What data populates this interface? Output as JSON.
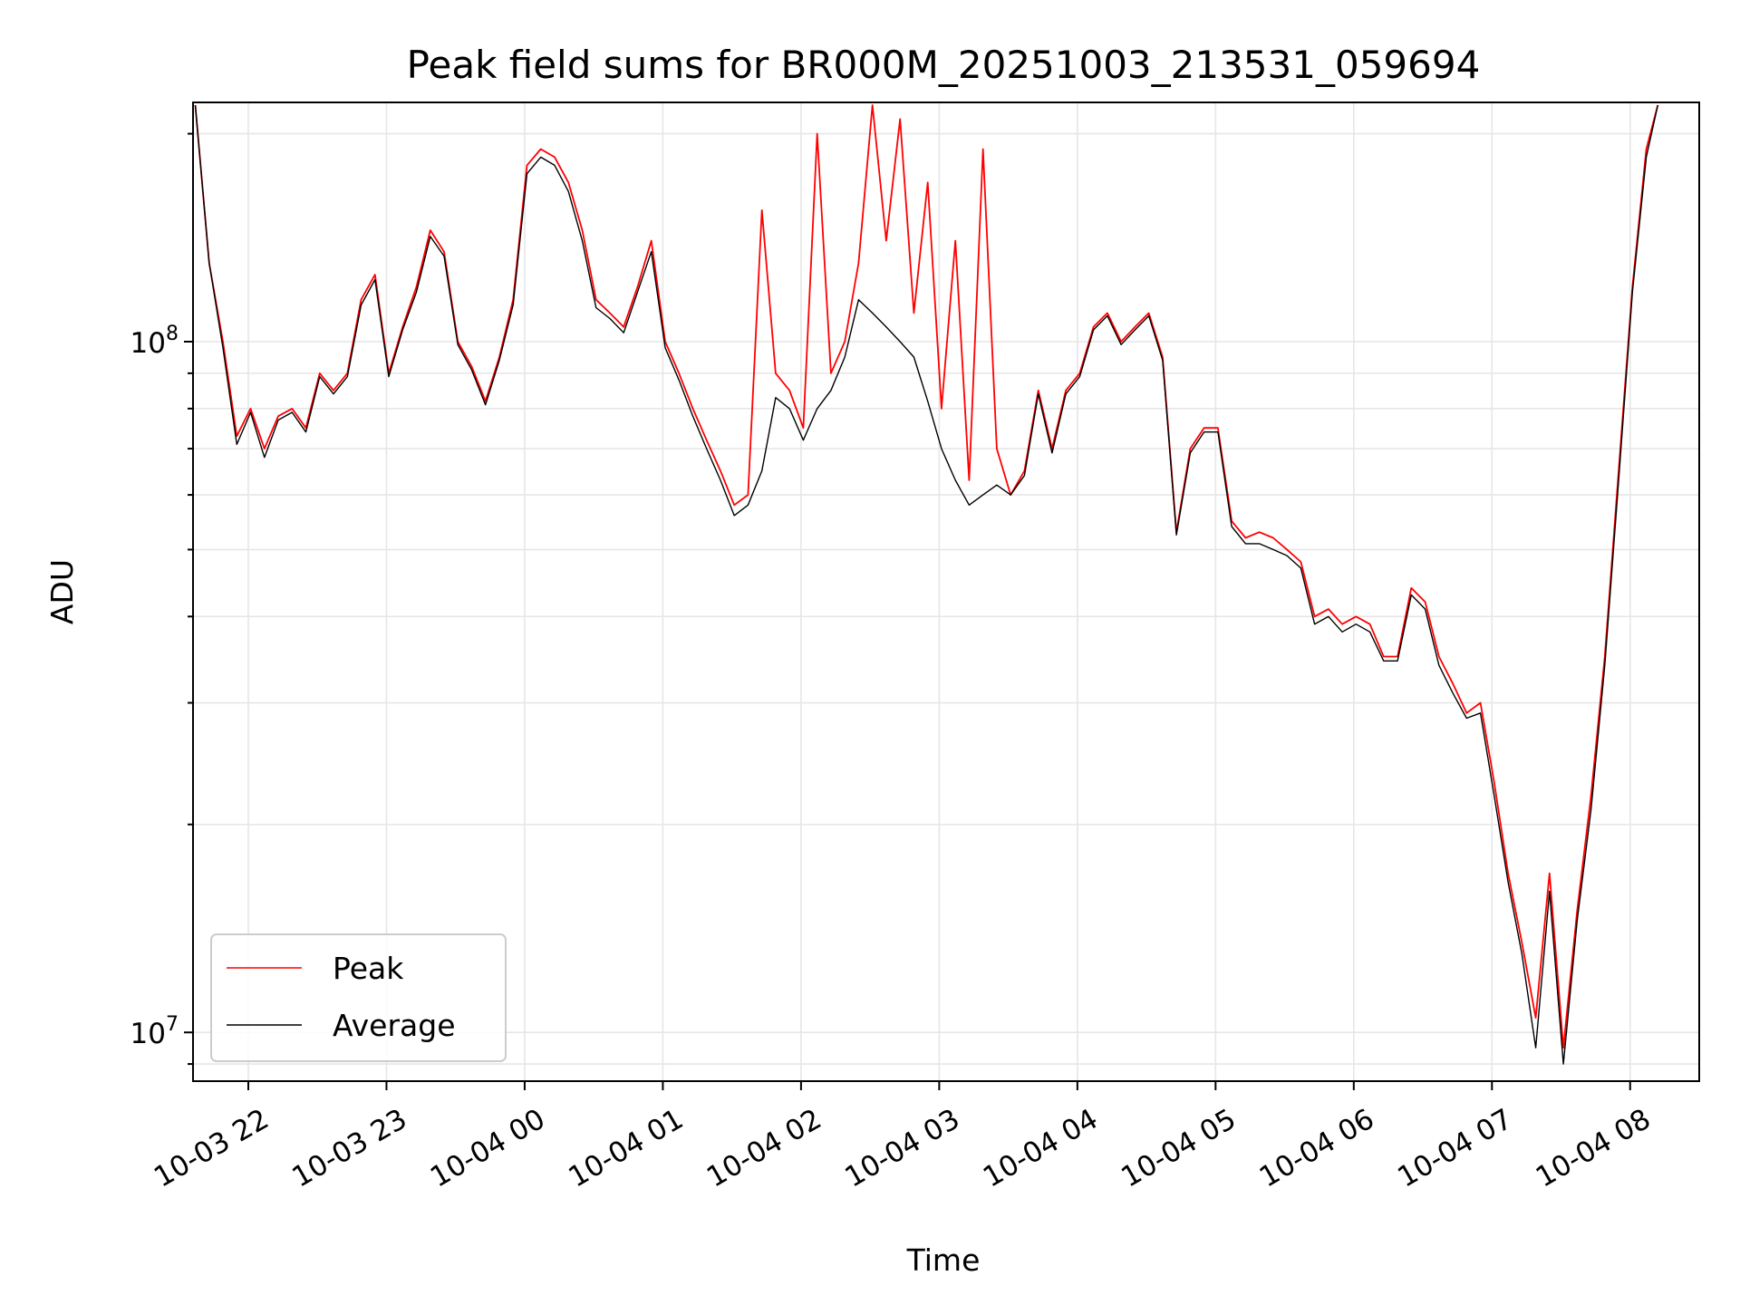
{
  "chart_data": {
    "type": "line",
    "title": "Peak field sums for BR000M_20251003_213531_059694",
    "xlabel": "Time",
    "ylabel": "ADU",
    "y_scale": "log",
    "ylim": [
      8500000,
      222000000
    ],
    "xlim_hours": [
      -2.4,
      8.5
    ],
    "x_tick_labels": [
      "10-03 22",
      "10-03 23",
      "10-04 00",
      "10-04 01",
      "10-04 02",
      "10-04 03",
      "10-04 04",
      "10-04 05",
      "10-04 06",
      "10-04 07",
      "10-04 08"
    ],
    "x_tick_hours": [
      -2,
      -1,
      0,
      1,
      2,
      3,
      4,
      5,
      6,
      7,
      8
    ],
    "y_major_ticks": [
      {
        "value": 10000000,
        "base": "10",
        "exp": "7"
      },
      {
        "value": 100000000,
        "base": "10",
        "exp": "8"
      }
    ],
    "grid": true,
    "legend_position": "lower-left",
    "series": [
      {
        "name": "Peak",
        "color": "#ff0000",
        "points": [
          [
            "10-03 21:37",
            220000000.0
          ],
          [
            "10-03 21:43",
            130000000.0
          ],
          [
            "10-03 21:49",
            100000000.0
          ],
          [
            "10-03 21:55",
            73000000.0
          ],
          [
            "10-03 22:01",
            80000000.0
          ],
          [
            "10-03 22:07",
            70000000.0
          ],
          [
            "10-03 22:13",
            78000000.0
          ],
          [
            "10-03 22:19",
            80000000.0
          ],
          [
            "10-03 22:25",
            75000000.0
          ],
          [
            "10-03 22:31",
            90000000.0
          ],
          [
            "10-03 22:37",
            85000000.0
          ],
          [
            "10-03 22:43",
            90000000.0
          ],
          [
            "10-03 22:49",
            115000000.0
          ],
          [
            "10-03 22:55",
            125000000.0
          ],
          [
            "10-03 23:01",
            90000000.0
          ],
          [
            "10-03 23:07",
            105000000.0
          ],
          [
            "10-03 23:13",
            120000000.0
          ],
          [
            "10-03 23:19",
            145000000.0
          ],
          [
            "10-03 23:25",
            135000000.0
          ],
          [
            "10-03 23:31",
            100000000.0
          ],
          [
            "10-03 23:37",
            92000000.0
          ],
          [
            "10-03 23:43",
            82000000.0
          ],
          [
            "10-03 23:49",
            95000000.0
          ],
          [
            "10-03 23:55",
            115000000.0
          ],
          [
            "10-04 00:01",
            180000000.0
          ],
          [
            "10-04 00:07",
            190000000.0
          ],
          [
            "10-04 00:13",
            185000000.0
          ],
          [
            "10-04 00:19",
            170000000.0
          ],
          [
            "10-04 00:25",
            145000000.0
          ],
          [
            "10-04 00:31",
            115000000.0
          ],
          [
            "10-04 00:37",
            110000000.0
          ],
          [
            "10-04 00:43",
            105000000.0
          ],
          [
            "10-04 00:49",
            120000000.0
          ],
          [
            "10-04 00:55",
            140000000.0
          ],
          [
            "10-04 01:01",
            100000000.0
          ],
          [
            "10-04 01:07",
            90000000.0
          ],
          [
            "10-04 01:13",
            80000000.0
          ],
          [
            "10-04 01:19",
            72000000.0
          ],
          [
            "10-04 01:25",
            65000000.0
          ],
          [
            "10-04 01:31",
            58000000.0
          ],
          [
            "10-04 01:37",
            60000000.0
          ],
          [
            "10-04 01:43",
            155000000.0
          ],
          [
            "10-04 01:49",
            90000000.0
          ],
          [
            "10-04 01:55",
            85000000.0
          ],
          [
            "10-04 02:01",
            75000000.0
          ],
          [
            "10-04 02:07",
            200000000.0
          ],
          [
            "10-04 02:13",
            90000000.0
          ],
          [
            "10-04 02:19",
            100000000.0
          ],
          [
            "10-04 02:25",
            130000000.0
          ],
          [
            "10-04 02:31",
            220000000.0
          ],
          [
            "10-04 02:37",
            140000000.0
          ],
          [
            "10-04 02:43",
            210000000.0
          ],
          [
            "10-04 02:49",
            110000000.0
          ],
          [
            "10-04 02:55",
            170000000.0
          ],
          [
            "10-04 03:01",
            80000000.0
          ],
          [
            "10-04 03:07",
            140000000.0
          ],
          [
            "10-04 03:13",
            63000000.0
          ],
          [
            "10-04 03:19",
            190000000.0
          ],
          [
            "10-04 03:25",
            70000000.0
          ],
          [
            "10-04 03:31",
            60000000.0
          ],
          [
            "10-04 03:37",
            65000000.0
          ],
          [
            "10-04 03:43",
            85000000.0
          ],
          [
            "10-04 03:49",
            70000000.0
          ],
          [
            "10-04 03:55",
            85000000.0
          ],
          [
            "10-04 04:01",
            90000000.0
          ],
          [
            "10-04 04:07",
            105000000.0
          ],
          [
            "10-04 04:13",
            110000000.0
          ],
          [
            "10-04 04:19",
            100000000.0
          ],
          [
            "10-04 04:25",
            105000000.0
          ],
          [
            "10-04 04:31",
            110000000.0
          ],
          [
            "10-04 04:37",
            95000000.0
          ],
          [
            "10-04 04:43",
            53000000.0
          ],
          [
            "10-04 04:49",
            70000000.0
          ],
          [
            "10-04 04:55",
            75000000.0
          ],
          [
            "10-04 05:01",
            75000000.0
          ],
          [
            "10-04 05:07",
            55000000.0
          ],
          [
            "10-04 05:13",
            52000000.0
          ],
          [
            "10-04 05:19",
            53000000.0
          ],
          [
            "10-04 05:25",
            52000000.0
          ],
          [
            "10-04 05:31",
            50000000.0
          ],
          [
            "10-04 05:37",
            48000000.0
          ],
          [
            "10-04 05:43",
            40000000.0
          ],
          [
            "10-04 05:49",
            41000000.0
          ],
          [
            "10-04 05:55",
            39000000.0
          ],
          [
            "10-04 06:01",
            40000000.0
          ],
          [
            "10-04 06:07",
            39000000.0
          ],
          [
            "10-04 06:13",
            35000000.0
          ],
          [
            "10-04 06:19",
            35000000.0
          ],
          [
            "10-04 06:25",
            44000000.0
          ],
          [
            "10-04 06:31",
            42000000.0
          ],
          [
            "10-04 06:37",
            35000000.0
          ],
          [
            "10-04 06:43",
            32000000.0
          ],
          [
            "10-04 06:49",
            29000000.0
          ],
          [
            "10-04 06:55",
            30000000.0
          ],
          [
            "10-04 07:01",
            23000000.0
          ],
          [
            "10-04 07:07",
            17000000.0
          ],
          [
            "10-04 07:13",
            13500000.0
          ],
          [
            "10-04 07:19",
            10500000.0
          ],
          [
            "10-04 07:25",
            17000000.0
          ],
          [
            "10-04 07:31",
            9500000.0
          ],
          [
            "10-04 07:37",
            15000000.0
          ],
          [
            "10-04 07:43",
            22000000.0
          ],
          [
            "10-04 07:49",
            35000000.0
          ],
          [
            "10-04 07:55",
            65000000.0
          ],
          [
            "10-04 08:01",
            120000000.0
          ],
          [
            "10-04 08:07",
            190000000.0
          ],
          [
            "10-04 08:12",
            220000000.0
          ]
        ]
      },
      {
        "name": "Average",
        "color": "#000000",
        "points": [
          [
            "10-03 21:37",
            220000000.0
          ],
          [
            "10-03 21:43",
            130000000.0
          ],
          [
            "10-03 21:49",
            98000000.0
          ],
          [
            "10-03 21:55",
            71000000.0
          ],
          [
            "10-03 22:01",
            79000000.0
          ],
          [
            "10-03 22:07",
            68000000.0
          ],
          [
            "10-03 22:13",
            77000000.0
          ],
          [
            "10-03 22:19",
            79000000.0
          ],
          [
            "10-03 22:25",
            74000000.0
          ],
          [
            "10-03 22:31",
            89000000.0
          ],
          [
            "10-03 22:37",
            84000000.0
          ],
          [
            "10-03 22:43",
            89000000.0
          ],
          [
            "10-03 22:49",
            113000000.0
          ],
          [
            "10-03 22:55",
            123000000.0
          ],
          [
            "10-03 23:01",
            89000000.0
          ],
          [
            "10-03 23:07",
            104000000.0
          ],
          [
            "10-03 23:13",
            118000000.0
          ],
          [
            "10-03 23:19",
            142000000.0
          ],
          [
            "10-03 23:25",
            133000000.0
          ],
          [
            "10-03 23:31",
            99000000.0
          ],
          [
            "10-03 23:37",
            91000000.0
          ],
          [
            "10-03 23:43",
            81000000.0
          ],
          [
            "10-03 23:49",
            94000000.0
          ],
          [
            "10-03 23:55",
            113000000.0
          ],
          [
            "10-04 00:01",
            175000000.0
          ],
          [
            "10-04 00:07",
            185000000.0
          ],
          [
            "10-04 00:13",
            180000000.0
          ],
          [
            "10-04 00:19",
            165000000.0
          ],
          [
            "10-04 00:25",
            140000000.0
          ],
          [
            "10-04 00:31",
            112000000.0
          ],
          [
            "10-04 00:37",
            108000000.0
          ],
          [
            "10-04 00:43",
            103000000.0
          ],
          [
            "10-04 00:49",
            118000000.0
          ],
          [
            "10-04 00:55",
            135000000.0
          ],
          [
            "10-04 01:01",
            98000000.0
          ],
          [
            "10-04 01:07",
            88000000.0
          ],
          [
            "10-04 01:13",
            78000000.0
          ],
          [
            "10-04 01:19",
            70000000.0
          ],
          [
            "10-04 01:25",
            63000000.0
          ],
          [
            "10-04 01:31",
            56000000.0
          ],
          [
            "10-04 01:37",
            58000000.0
          ],
          [
            "10-04 01:43",
            65000000.0
          ],
          [
            "10-04 01:49",
            83000000.0
          ],
          [
            "10-04 01:55",
            80000000.0
          ],
          [
            "10-04 02:01",
            72000000.0
          ],
          [
            "10-04 02:07",
            80000000.0
          ],
          [
            "10-04 02:13",
            85000000.0
          ],
          [
            "10-04 02:19",
            95000000.0
          ],
          [
            "10-04 02:25",
            115000000.0
          ],
          [
            "10-04 02:31",
            110000000.0
          ],
          [
            "10-04 02:37",
            105000000.0
          ],
          [
            "10-04 02:43",
            100000000.0
          ],
          [
            "10-04 02:49",
            95000000.0
          ],
          [
            "10-04 02:55",
            82000000.0
          ],
          [
            "10-04 03:01",
            70000000.0
          ],
          [
            "10-04 03:07",
            63000000.0
          ],
          [
            "10-04 03:13",
            58000000.0
          ],
          [
            "10-04 03:19",
            60000000.0
          ],
          [
            "10-04 03:25",
            62000000.0
          ],
          [
            "10-04 03:31",
            60000000.0
          ],
          [
            "10-04 03:37",
            64000000.0
          ],
          [
            "10-04 03:43",
            84000000.0
          ],
          [
            "10-04 03:49",
            69000000.0
          ],
          [
            "10-04 03:55",
            84000000.0
          ],
          [
            "10-04 04:01",
            89000000.0
          ],
          [
            "10-04 04:07",
            104000000.0
          ],
          [
            "10-04 04:13",
            109000000.0
          ],
          [
            "10-04 04:19",
            99000000.0
          ],
          [
            "10-04 04:25",
            104000000.0
          ],
          [
            "10-04 04:31",
            109000000.0
          ],
          [
            "10-04 04:37",
            94000000.0
          ],
          [
            "10-04 04:43",
            52500000.0
          ],
          [
            "10-04 04:49",
            69000000.0
          ],
          [
            "10-04 04:55",
            74000000.0
          ],
          [
            "10-04 05:01",
            74000000.0
          ],
          [
            "10-04 05:07",
            54000000.0
          ],
          [
            "10-04 05:13",
            51000000.0
          ],
          [
            "10-04 05:19",
            51000000.0
          ],
          [
            "10-04 05:25",
            50000000.0
          ],
          [
            "10-04 05:31",
            49000000.0
          ],
          [
            "10-04 05:37",
            47000000.0
          ],
          [
            "10-04 05:43",
            39000000.0
          ],
          [
            "10-04 05:49",
            40000000.0
          ],
          [
            "10-04 05:55",
            38000000.0
          ],
          [
            "10-04 06:01",
            39000000.0
          ],
          [
            "10-04 06:07",
            38000000.0
          ],
          [
            "10-04 06:13",
            34500000.0
          ],
          [
            "10-04 06:19",
            34500000.0
          ],
          [
            "10-04 06:25",
            43000000.0
          ],
          [
            "10-04 06:31",
            41000000.0
          ],
          [
            "10-04 06:37",
            34000000.0
          ],
          [
            "10-04 06:43",
            31000000.0
          ],
          [
            "10-04 06:49",
            28500000.0
          ],
          [
            "10-04 06:55",
            29000000.0
          ],
          [
            "10-04 07:01",
            22000000.0
          ],
          [
            "10-04 07:07",
            16500000.0
          ],
          [
            "10-04 07:13",
            13000000.0
          ],
          [
            "10-04 07:19",
            9500000.0
          ],
          [
            "10-04 07:25",
            16000000.0
          ],
          [
            "10-04 07:31",
            9000000.0
          ],
          [
            "10-04 07:37",
            14500000.0
          ],
          [
            "10-04 07:43",
            21000000.0
          ],
          [
            "10-04 07:49",
            34000000.0
          ],
          [
            "10-04 07:55",
            63000000.0
          ],
          [
            "10-04 08:01",
            118000000.0
          ],
          [
            "10-04 08:07",
            185000000.0
          ],
          [
            "10-04 08:12",
            220000000.0
          ]
        ]
      }
    ]
  }
}
